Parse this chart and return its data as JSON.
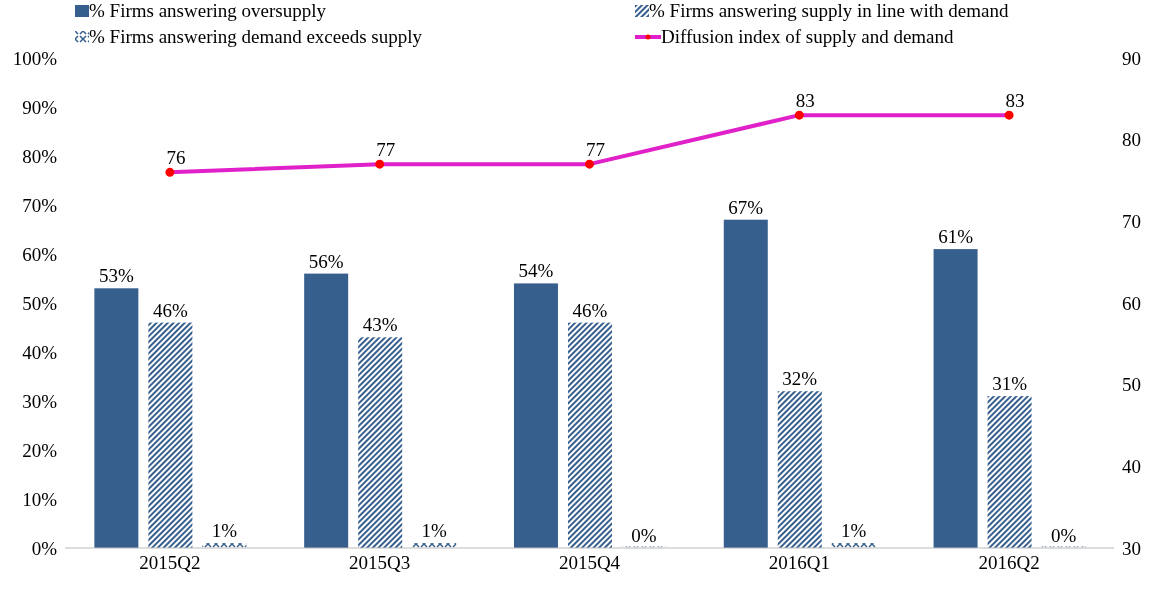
{
  "chart_data": {
    "type": "bar",
    "categories": [
      "2015Q2",
      "2015Q3",
      "2015Q4",
      "2016Q1",
      "2016Q2"
    ],
    "series": [
      {
        "name": "% Firms answering oversupply",
        "color": "#375f8e",
        "values": [
          53,
          56,
          54,
          67,
          61
        ],
        "value_labels": [
          "53%",
          "56%",
          "54%",
          "67%",
          "61%"
        ]
      },
      {
        "name": "% Firms answering supply in line with demand",
        "color": "#375f8e",
        "values": [
          46,
          43,
          46,
          32,
          31
        ],
        "value_labels": [
          "46%",
          "43%",
          "46%",
          "32%",
          "31%"
        ]
      },
      {
        "name": "% Firms answering demand exceeds supply",
        "color": "#375f8e",
        "values": [
          1,
          1,
          0,
          1,
          0
        ],
        "value_labels": [
          "1%",
          "1%",
          "0%",
          "1%",
          "0%"
        ]
      },
      {
        "name": "Diffusion index of supply and demand",
        "type": "line",
        "axis": "y2",
        "color": "#e020c8",
        "marker": "circle",
        "values": [
          76,
          77,
          77,
          83,
          83
        ],
        "value_labels": [
          "76",
          "77",
          "77",
          "83",
          "83"
        ]
      }
    ],
    "ylim": [
      0,
      100
    ],
    "yticks": [
      {
        "value": 0,
        "label": "0%"
      },
      {
        "value": 10,
        "label": "10%"
      },
      {
        "value": 20,
        "label": "20%"
      },
      {
        "value": 30,
        "label": "30%"
      },
      {
        "value": 40,
        "label": "40%"
      },
      {
        "value": 50,
        "label": "50%"
      },
      {
        "value": 60,
        "label": "60%"
      },
      {
        "value": 70,
        "label": "70%"
      },
      {
        "value": 80,
        "label": "80%"
      },
      {
        "value": 90,
        "label": "90%"
      },
      {
        "value": 100,
        "label": "100%"
      }
    ],
    "y2lim": [
      30,
      90
    ],
    "y2ticks": [
      30,
      40,
      50,
      60,
      70,
      80,
      90
    ],
    "legend": "top",
    "grid": false
  }
}
